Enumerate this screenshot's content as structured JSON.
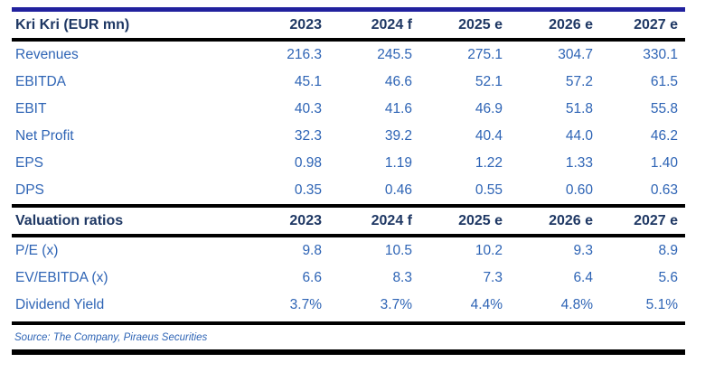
{
  "table": {
    "title": "Kri Kri (EUR mn)",
    "columns": [
      "2023",
      "2024 f",
      "2025 e",
      "2026 e",
      "2027 e"
    ],
    "financial_rows": [
      {
        "label": "Revenues",
        "values": [
          "216.3",
          "245.5",
          "275.1",
          "304.7",
          "330.1"
        ]
      },
      {
        "label": "EBITDA",
        "values": [
          "45.1",
          "46.6",
          "52.1",
          "57.2",
          "61.5"
        ]
      },
      {
        "label": "EBIT",
        "values": [
          "40.3",
          "41.6",
          "46.9",
          "51.8",
          "55.8"
        ]
      },
      {
        "label": "Net Profit",
        "values": [
          "32.3",
          "39.2",
          "40.4",
          "44.0",
          "46.2"
        ]
      },
      {
        "label": "EPS",
        "values": [
          "0.98",
          "1.19",
          "1.22",
          "1.33",
          "1.40"
        ]
      },
      {
        "label": "DPS",
        "values": [
          "0.35",
          "0.46",
          "0.55",
          "0.60",
          "0.63"
        ]
      }
    ],
    "valuation_title": "Valuation ratios",
    "valuation_rows": [
      {
        "label": "P/E (x)",
        "values": [
          "9.8",
          "10.5",
          "10.2",
          "9.3",
          "8.9"
        ]
      },
      {
        "label": "EV/EBITDA (x)",
        "values": [
          "6.6",
          "8.3",
          "7.3",
          "6.4",
          "5.6"
        ]
      },
      {
        "label": "Dividend Yield",
        "values": [
          "3.7%",
          "3.7%",
          "4.4%",
          "4.8%",
          "5.1%"
        ]
      }
    ],
    "source": "Source: The Company, Piraeus Securities"
  },
  "colors": {
    "top_rule_navy": "#21219E",
    "section_rule_black": "#000000",
    "header_text": "#1F3864",
    "data_text": "#2E64B5",
    "source_text": "#2E64B5"
  }
}
